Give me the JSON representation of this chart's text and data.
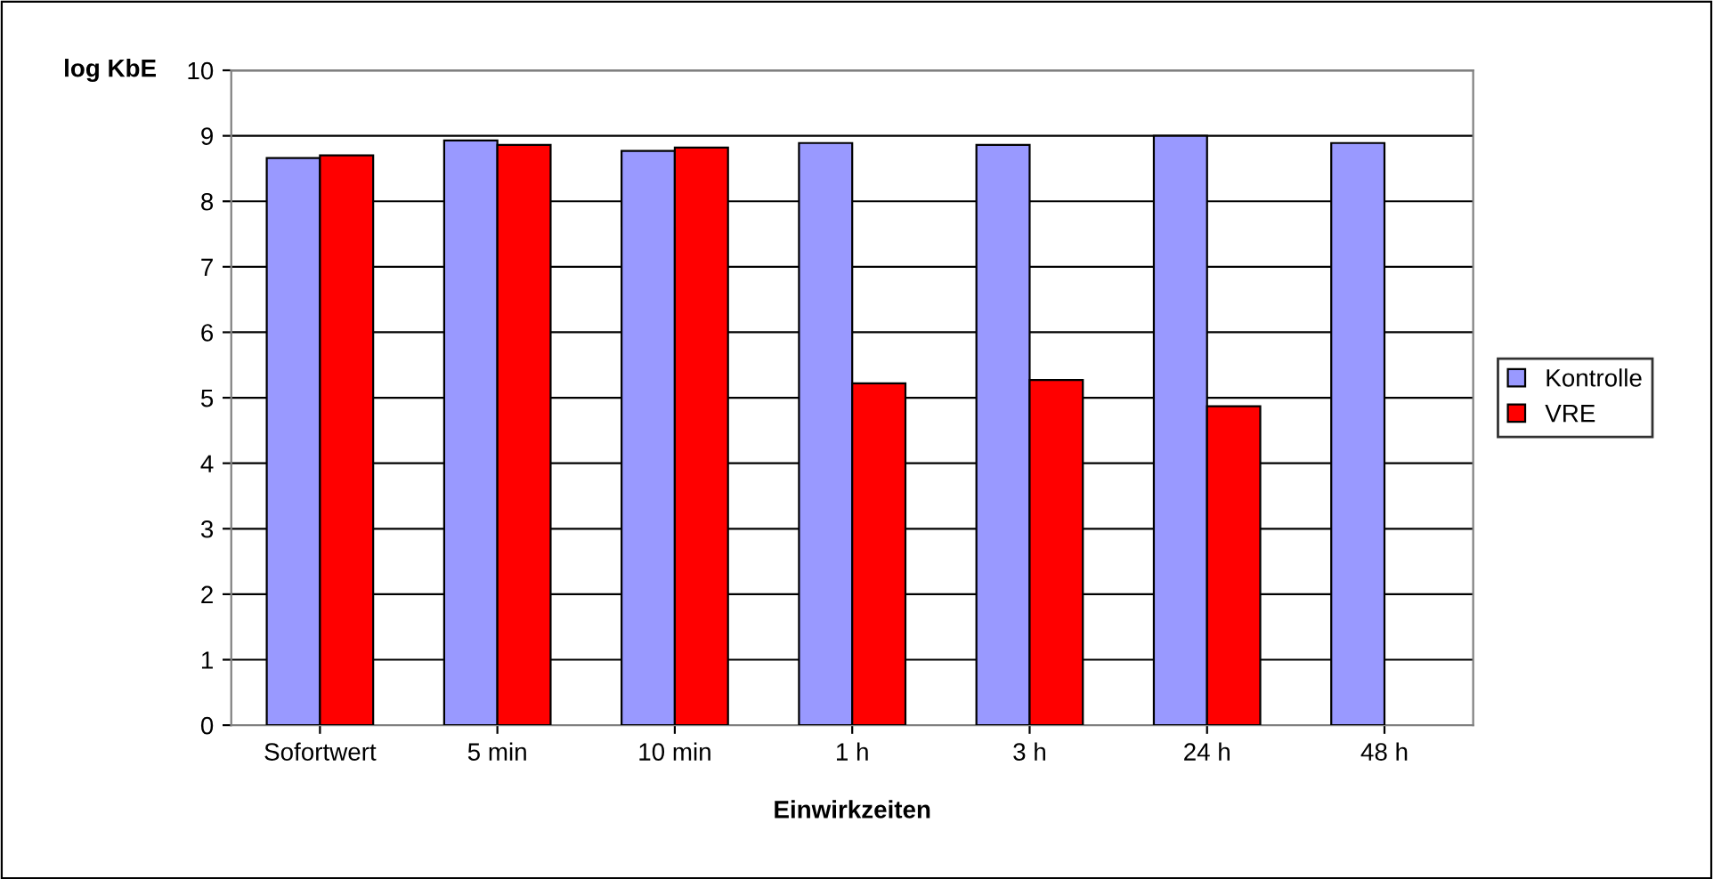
{
  "chart_data": {
    "type": "bar",
    "ylabel": "log KbE",
    "xlabel": "Einwirkzeiten",
    "categories": [
      "Sofortwert",
      "5 min",
      "10 min",
      "1 h",
      "3 h",
      "24 h",
      "48 h"
    ],
    "series": [
      {
        "name": "Kontrolle",
        "color": "#9999ff",
        "values": [
          8.66,
          8.93,
          8.77,
          8.89,
          8.86,
          9.0,
          8.89
        ]
      },
      {
        "name": "VRE",
        "color": "#ff0000",
        "values": [
          8.7,
          8.86,
          8.82,
          5.22,
          5.27,
          4.87,
          null
        ]
      }
    ],
    "ylim": [
      0,
      10
    ],
    "yticks": [
      0,
      1,
      2,
      3,
      4,
      5,
      6,
      7,
      8,
      9,
      10
    ],
    "grid": "y",
    "legend": "right"
  }
}
